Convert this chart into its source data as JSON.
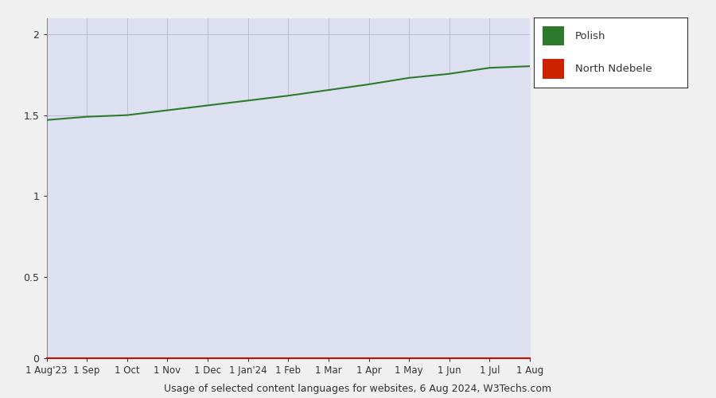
{
  "caption": "Usage of selected content languages for websites, 6 Aug 2024, W3Techs.com",
  "xlabels": [
    "1 Aug'23",
    "1 Sep",
    "1 Oct",
    "1 Nov",
    "1 Dec",
    "1 Jan'24",
    "1 Feb",
    "1 Mar",
    "1 Apr",
    "1 May",
    "1 Jun",
    "1 Jul",
    "1 Aug"
  ],
  "ylim": [
    0,
    2.1
  ],
  "yticks": [
    0,
    0.5,
    1,
    1.5,
    2
  ],
  "ytick_labels": [
    "0",
    "0.5",
    "1",
    "1.5",
    "2"
  ],
  "polish_values": [
    1.47,
    1.49,
    1.5,
    1.53,
    1.56,
    1.59,
    1.62,
    1.655,
    1.69,
    1.73,
    1.755,
    1.792,
    1.802
  ],
  "ndebele_values": [
    0.0,
    0.0,
    0.0,
    0.0,
    0.0,
    0.0,
    0.0,
    0.0,
    0.0,
    0.0,
    0.0,
    0.0,
    0.0
  ],
  "polish_color": "#2d7a2d",
  "ndebele_color": "#cc2200",
  "fill_color": "#dce0f0",
  "plot_bg_color": "#dce0f0",
  "outer_bg_color": "#f0f0f0",
  "grid_color": "#b8b8cc",
  "legend_labels": [
    "Polish",
    "North Ndebele"
  ],
  "legend_colors": [
    "#2d7a2d",
    "#cc2200"
  ],
  "bottom_line_color": "#cc0000"
}
